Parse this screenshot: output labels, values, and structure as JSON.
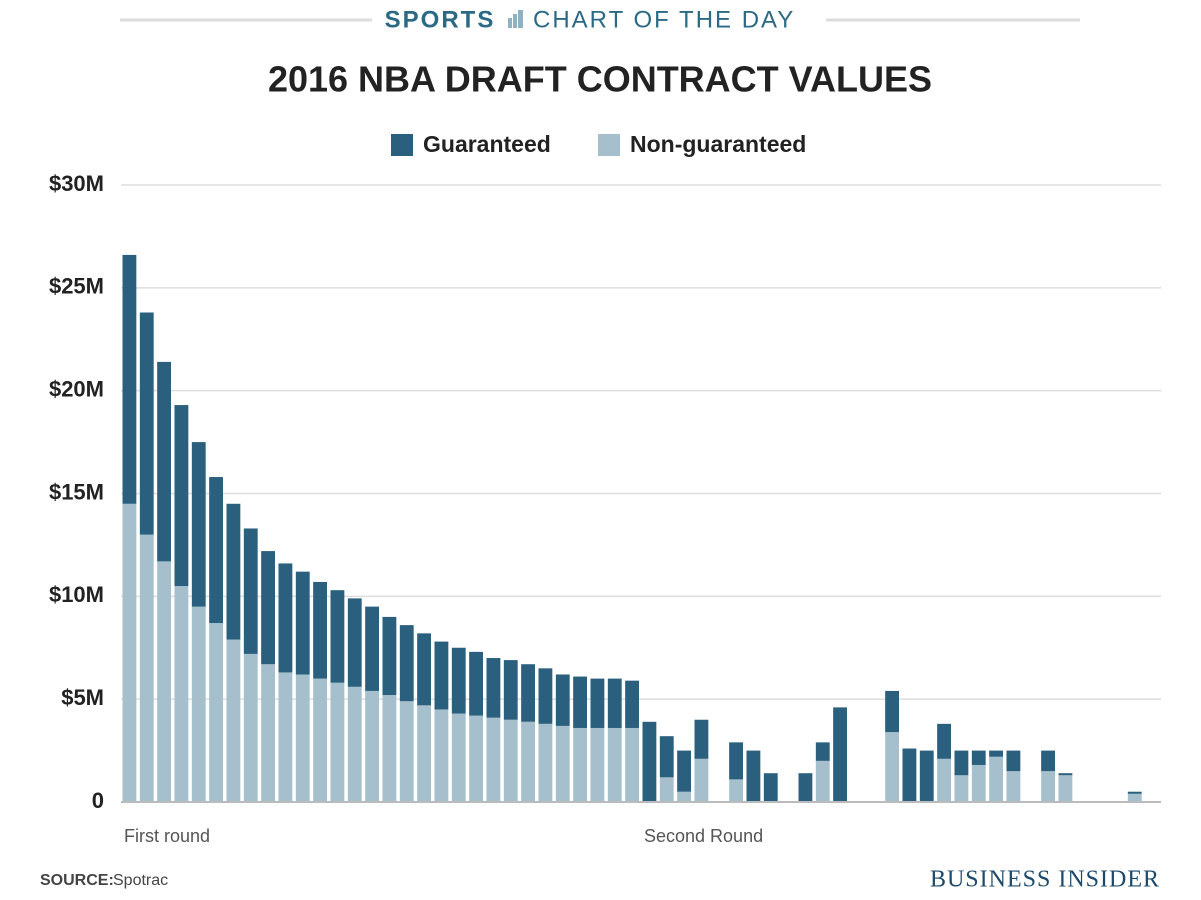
{
  "chart_data": {
    "type": "stacked-bar",
    "header": {
      "brand": "SPORTS",
      "label": "CHART OF THE DAY"
    },
    "title": "2016 NBA DRAFT CONTRACT VALUES",
    "categories": [
      "First round",
      null,
      null,
      null,
      null,
      null,
      null,
      null,
      null,
      null,
      null,
      null,
      null,
      null,
      null,
      null,
      null,
      null,
      null,
      null,
      null,
      null,
      null,
      null,
      null,
      null,
      null,
      null,
      null,
      null,
      "Second Round",
      null,
      null,
      null,
      null,
      null,
      null,
      null,
      null,
      null,
      null,
      null,
      null,
      null,
      null,
      null,
      null,
      null,
      null,
      null,
      null,
      null,
      null,
      null,
      null,
      null,
      null,
      null,
      null,
      null
    ],
    "series": [
      {
        "name": "Guaranteed",
        "color": "#2b5f7e",
        "values": [
          12.1,
          10.8,
          9.7,
          8.8,
          8.0,
          7.1,
          6.6,
          6.1,
          5.5,
          5.3,
          5.0,
          4.7,
          4.5,
          4.3,
          4.1,
          3.8,
          3.7,
          3.5,
          3.3,
          3.2,
          3.1,
          2.9,
          2.9,
          2.8,
          2.7,
          2.5,
          2.5,
          2.4,
          2.4,
          2.3,
          3.9,
          2.0,
          2.0,
          1.9,
          0,
          1.8,
          2.5,
          1.4,
          0,
          1.4,
          0.9,
          4.6,
          0,
          0,
          2.0,
          2.6,
          2.5,
          1.7,
          1.2,
          0.7,
          0.3,
          1.0,
          0,
          1.0,
          0.1,
          0,
          0,
          0,
          0.1,
          0
        ]
      },
      {
        "name": "Non-guaranteed",
        "color": "#a5bfcc",
        "values": [
          14.5,
          13.0,
          11.7,
          10.5,
          9.5,
          8.7,
          7.9,
          7.2,
          6.7,
          6.3,
          6.2,
          6.0,
          5.8,
          5.6,
          5.4,
          5.2,
          4.9,
          4.7,
          4.5,
          4.3,
          4.2,
          4.1,
          4.0,
          3.9,
          3.8,
          3.7,
          3.6,
          3.6,
          3.6,
          3.6,
          0,
          1.2,
          0.5,
          2.1,
          0,
          1.1,
          0,
          0,
          0,
          0,
          2.0,
          0,
          0,
          0,
          3.4,
          0,
          0,
          2.1,
          1.3,
          1.8,
          2.2,
          1.5,
          0,
          1.5,
          1.3,
          0,
          0,
          0,
          0.4,
          0
        ]
      }
    ],
    "ylim": [
      0,
      30
    ],
    "yticks": [
      0,
      {
        "value": 5,
        "label": "$5M"
      },
      {
        "value": 10,
        "label": "$10M"
      },
      {
        "value": 15,
        "label": "$15M"
      },
      {
        "value": 20,
        "label": "$20M"
      },
      {
        "value": 25,
        "label": "$25M"
      },
      {
        "value": 30,
        "label": "$30M"
      }
    ],
    "grid": true,
    "legend": "top",
    "source_label": "SOURCE:",
    "source": "Spotrac",
    "credit": "BUSINESS INSIDER"
  }
}
